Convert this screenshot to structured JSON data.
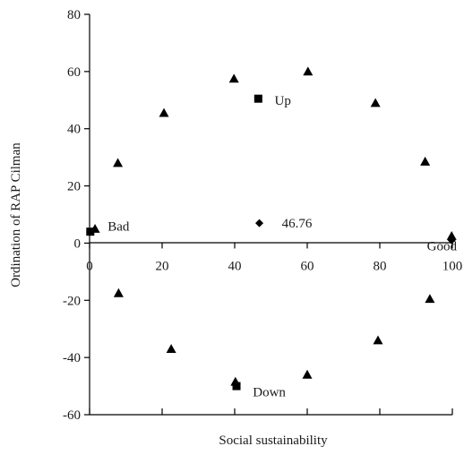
{
  "chart_data": {
    "type": "scatter",
    "title": "",
    "xlabel": "Social sustainability",
    "ylabel": "Ordination of RAP Cilman",
    "xlim": [
      0,
      100
    ],
    "ylim": [
      -60,
      80
    ],
    "x_ticks": [
      "0",
      "20",
      "40",
      "60",
      "80",
      "100"
    ],
    "y_ticks": [
      "80",
      "60",
      "40",
      "20",
      "0",
      "-20",
      "-40",
      "-60"
    ],
    "grid": false,
    "series": [
      {
        "marker": "triangle",
        "x": [
          1.5,
          7.8,
          20.5,
          22.5,
          39.8,
          40.2,
          60.2,
          60.0,
          78.8,
          79.5,
          92.5,
          93.8,
          99.8,
          8.0
        ],
        "y": [
          5.0,
          28.0,
          45.5,
          -37.0,
          57.5,
          -48.5,
          60.0,
          -46.0,
          49.0,
          -34.0,
          28.5,
          -19.5,
          2.5,
          -17.5
        ]
      },
      {
        "marker": "square",
        "x": [
          0.2,
          46.5,
          40.5
        ],
        "y": [
          4.0,
          50.5,
          -50.0
        ]
      },
      {
        "marker": "diamond",
        "x": [
          46.8,
          99.8
        ],
        "y": [
          7.0,
          1.0
        ]
      }
    ],
    "annotations": [
      {
        "text": "Bad",
        "x": 5,
        "y": 6
      },
      {
        "text": "Up",
        "x": 51,
        "y": 50
      },
      {
        "text": "46.76",
        "x": 53,
        "y": 7
      },
      {
        "text": "Good",
        "x": 93,
        "y": -1
      },
      {
        "text": "Down",
        "x": 45,
        "y": -52
      }
    ]
  }
}
